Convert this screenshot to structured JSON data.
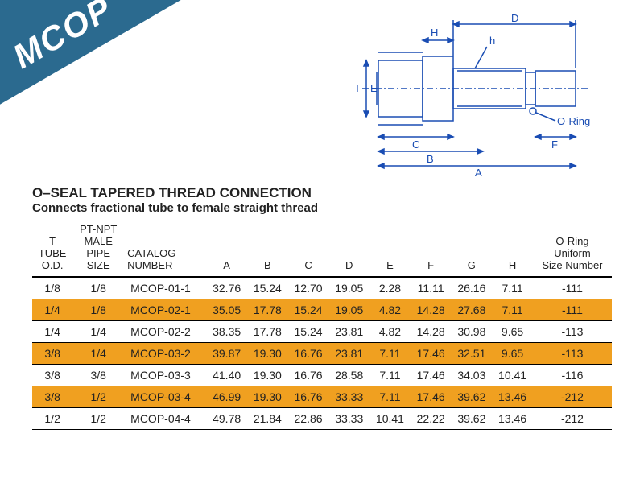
{
  "banner": {
    "label": "MCOP"
  },
  "diagram": {
    "labels": {
      "H": "H",
      "h": "h",
      "T": "T",
      "E": "E",
      "C": "C",
      "B": "B",
      "A": "A",
      "D": "D",
      "F": "F",
      "oring": "O-Ring"
    },
    "stroke_color": "#1a4db3",
    "stroke_width": 1.5
  },
  "heading": {
    "title": "O–SEAL TAPERED THREAD CONNECTION",
    "subtitle": "Connects fractional tube to female straight thread"
  },
  "table": {
    "columns": [
      "T\nTUBE\nO.D.",
      "PT-NPT\nMALE\nPIPE\nSIZE",
      "CATALOG\nNUMBER",
      "A",
      "B",
      "C",
      "D",
      "E",
      "F",
      "G",
      "H",
      "O-Ring\nUniform\nSize Number"
    ],
    "highlight_rows": [
      1,
      3,
      5
    ],
    "highlight_color": "#f0a020",
    "rows": [
      [
        "1/8",
        "1/8",
        "MCOP-01-1",
        "32.76",
        "15.24",
        "12.70",
        "19.05",
        "2.28",
        "11.11",
        "26.16",
        "7.11",
        "-111"
      ],
      [
        "1/4",
        "1/8",
        "MCOP-02-1",
        "35.05",
        "17.78",
        "15.24",
        "19.05",
        "4.82",
        "14.28",
        "27.68",
        "7.11",
        "-111"
      ],
      [
        "1/4",
        "1/4",
        "MCOP-02-2",
        "38.35",
        "17.78",
        "15.24",
        "23.81",
        "4.82",
        "14.28",
        "30.98",
        "9.65",
        "-113"
      ],
      [
        "3/8",
        "1/4",
        "MCOP-03-2",
        "39.87",
        "19.30",
        "16.76",
        "23.81",
        "7.11",
        "17.46",
        "32.51",
        "9.65",
        "-113"
      ],
      [
        "3/8",
        "3/8",
        "MCOP-03-3",
        "41.40",
        "19.30",
        "16.76",
        "28.58",
        "7.11",
        "17.46",
        "34.03",
        "10.41",
        "-116"
      ],
      [
        "3/8",
        "1/2",
        "MCOP-03-4",
        "46.99",
        "19.30",
        "16.76",
        "33.33",
        "7.11",
        "17.46",
        "39.62",
        "13.46",
        "-212"
      ],
      [
        "1/2",
        "1/2",
        "MCOP-04-4",
        "49.78",
        "21.84",
        "22.86",
        "33.33",
        "10.41",
        "22.22",
        "39.62",
        "13.46",
        "-212"
      ]
    ]
  }
}
